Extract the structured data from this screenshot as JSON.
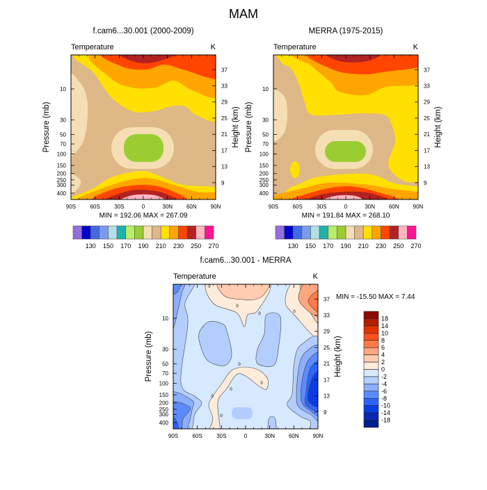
{
  "title": "MAM",
  "chart_data": [
    {
      "type": "heatmap",
      "subtype": "filled-contour",
      "title": "f.cam6...30.001 (2000-2009)",
      "left_string": "Temperature",
      "right_string": "K",
      "min_max": "MIN = 192.06  MAX = 267.09",
      "min": 192.06,
      "max": 267.09,
      "ylabel": "Pressure (mb)",
      "y2label": "Height (km)",
      "x_ticks": [
        "90S",
        "60S",
        "30S",
        "0",
        "30N",
        "60N",
        "90N"
      ],
      "xlim": [
        -90,
        90
      ],
      "y_ticks": [
        "10",
        "30",
        "50",
        "70",
        "100",
        "150",
        "200",
        "250",
        "300",
        "400"
      ],
      "y_tick_values": [
        10,
        30,
        50,
        70,
        100,
        150,
        200,
        250,
        300,
        400
      ],
      "ylim": [
        3,
        500
      ],
      "yscale": "log",
      "y2_ticks": [
        "37",
        "33",
        "29",
        "25",
        "21",
        "17",
        "13",
        "9"
      ],
      "y2_tick_values": [
        37,
        33,
        29,
        25,
        21,
        17,
        13,
        9
      ],
      "colorbar": {
        "orientation": "horizontal",
        "labels": [
          "130",
          "150",
          "170",
          "190",
          "210",
          "230",
          "250",
          "270"
        ],
        "levels": [
          120,
          130,
          140,
          150,
          160,
          170,
          180,
          190,
          200,
          210,
          220,
          230,
          240,
          250,
          260,
          270,
          280
        ],
        "colors": [
          "#9370DB",
          "#0000CD",
          "#4169E1",
          "#7B9BEF",
          "#B0E0E6",
          "#20B2AA",
          "#B9EE6A",
          "#9ACD32",
          "#F5DEB3",
          "#DEB887",
          "#FFE000",
          "#FFA500",
          "#FF4500",
          "#B22222",
          "#FFB6C1",
          "#FF1493"
        ]
      }
    },
    {
      "type": "heatmap",
      "subtype": "filled-contour",
      "title": "MERRA (1975-2015)",
      "left_string": "Temperature",
      "right_string": "K",
      "min_max": "MIN = 191.84  MAX = 268.10",
      "min": 191.84,
      "max": 268.1,
      "ylabel": "Pressure (mb)",
      "y2label": "Height (km)",
      "x_ticks": [
        "90S",
        "60S",
        "30S",
        "0",
        "30N",
        "60N",
        "90N"
      ],
      "xlim": [
        -90,
        90
      ],
      "y_ticks": [
        "10",
        "30",
        "50",
        "70",
        "100",
        "150",
        "200",
        "250",
        "300",
        "400"
      ],
      "y_tick_values": [
        10,
        30,
        50,
        70,
        100,
        150,
        200,
        250,
        300,
        400
      ],
      "ylim": [
        3,
        500
      ],
      "yscale": "log",
      "y2_ticks": [
        "37",
        "33",
        "29",
        "25",
        "21",
        "17",
        "13",
        "9"
      ],
      "y2_tick_values": [
        37,
        33,
        29,
        25,
        21,
        17,
        13,
        9
      ],
      "colorbar": {
        "orientation": "horizontal",
        "labels": [
          "130",
          "150",
          "170",
          "190",
          "210",
          "230",
          "250",
          "270"
        ],
        "levels": [
          120,
          130,
          140,
          150,
          160,
          170,
          180,
          190,
          200,
          210,
          220,
          230,
          240,
          250,
          260,
          270,
          280
        ],
        "colors": [
          "#9370DB",
          "#0000CD",
          "#4169E1",
          "#7B9BEF",
          "#B0E0E6",
          "#20B2AA",
          "#B9EE6A",
          "#9ACD32",
          "#F5DEB3",
          "#DEB887",
          "#FFE000",
          "#FFA500",
          "#FF4500",
          "#B22222",
          "#FFB6C1",
          "#FF1493"
        ]
      }
    },
    {
      "type": "heatmap",
      "subtype": "filled-contour",
      "title": "f.cam6...30.001 - MERRA",
      "left_string": "Temperature",
      "right_string": "K",
      "min_max": "MIN = -15.50  MAX =   7.44",
      "min": -15.5,
      "max": 7.44,
      "ylabel": "Pressure (mb)",
      "y2label": "Height (km)",
      "x_ticks": [
        "90S",
        "60S",
        "30S",
        "0",
        "30N",
        "60N",
        "90N"
      ],
      "xlim": [
        -90,
        90
      ],
      "y_ticks": [
        "10",
        "30",
        "50",
        "70",
        "100",
        "150",
        "200",
        "250",
        "300",
        "400"
      ],
      "y_tick_values": [
        10,
        30,
        50,
        70,
        100,
        150,
        200,
        250,
        300,
        400
      ],
      "ylim": [
        3,
        500
      ],
      "yscale": "log",
      "y2_ticks": [
        "37",
        "33",
        "29",
        "25",
        "21",
        "17",
        "13",
        "9"
      ],
      "y2_tick_values": [
        37,
        33,
        29,
        25,
        21,
        17,
        13,
        9
      ],
      "contour_line_label": "0",
      "colorbar": {
        "orientation": "vertical",
        "labels": [
          "18",
          "14",
          "10",
          "8",
          "6",
          "4",
          "2",
          "0",
          "-2",
          "-4",
          "-6",
          "-8",
          "-10",
          "-14",
          "-18"
        ],
        "colors": [
          "#8C0A00",
          "#B41E00",
          "#E13200",
          "#FF5020",
          "#FF7A45",
          "#FFA680",
          "#FFCCB0",
          "#FFEBDA",
          "#D7E9FF",
          "#B4CDFF",
          "#8CAEFF",
          "#5A8CFF",
          "#2D64FF",
          "#0A3CE6",
          "#0A28B4",
          "#001E8C"
        ]
      }
    }
  ]
}
